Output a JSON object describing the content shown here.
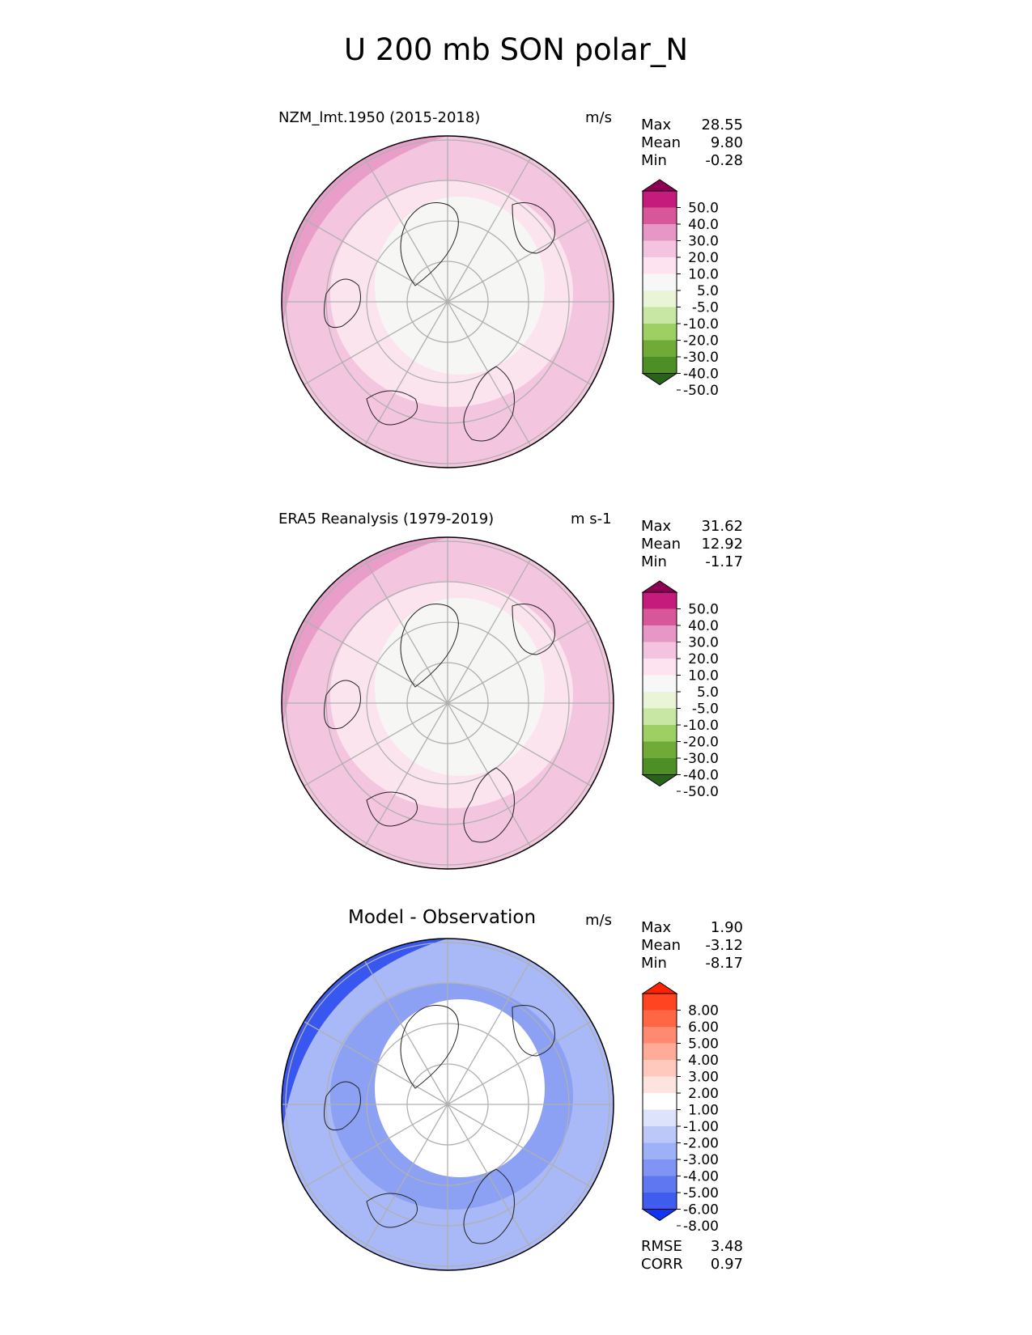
{
  "figure_title": "U 200 mb SON polar_N",
  "panels": [
    {
      "title": "NZM_lmt.1950 (2015-2018)",
      "units": "m/s",
      "stats": [
        {
          "label": "Max",
          "value": "28.55"
        },
        {
          "label": "Mean",
          "value": "9.80"
        },
        {
          "label": "Min",
          "value": "-0.28"
        }
      ],
      "colorbar": {
        "ticks": [
          "50.0",
          "40.0",
          "30.0",
          "20.0",
          "10.0",
          "5.0",
          "-5.0",
          "-10.0",
          "-20.0",
          "-30.0",
          "-40.0",
          "-50.0"
        ],
        "colors": [
          "#8e0152",
          "#c51b7d",
          "#de77ae",
          "#f1b6da",
          "#fde0ef",
          "#f7f7f7",
          "#e6f5d0",
          "#b8e186",
          "#7fbc41",
          "#4d9221",
          "#276419"
        ],
        "colors_full": [
          "#8e0152",
          "#c51b7d",
          "#d6589b",
          "#e797c5",
          "#f3c3df",
          "#fce3ef",
          "#f7f7f7",
          "#e9f5d6",
          "#c9e7a4",
          "#9dcf63",
          "#6fab36",
          "#4d8f25",
          "#276419"
        ]
      },
      "map_colors": {
        "outer": "#f3c5df",
        "ring": "#f3c5df",
        "inner": "#fce4ef",
        "core": "#f6f6f4",
        "jet": "#e898c6"
      }
    },
    {
      "title": "ERA5 Reanalysis (1979-2019)",
      "units": "m s-1",
      "stats": [
        {
          "label": "Max",
          "value": "31.62"
        },
        {
          "label": "Mean",
          "value": "12.92"
        },
        {
          "label": "Min",
          "value": "-1.17"
        }
      ],
      "colorbar": {
        "ticks": [
          "50.0",
          "40.0",
          "30.0",
          "20.0",
          "10.0",
          "5.0",
          "-5.0",
          "-10.0",
          "-20.0",
          "-30.0",
          "-40.0",
          "-50.0"
        ],
        "colors_full": [
          "#8e0152",
          "#c51b7d",
          "#d6589b",
          "#e797c5",
          "#f3c3df",
          "#fce3ef",
          "#f7f7f7",
          "#e9f5d6",
          "#c9e7a4",
          "#9dcf63",
          "#6fab36",
          "#4d8f25",
          "#276419"
        ]
      },
      "map_colors": {
        "outer": "#f3c5df",
        "ring": "#f3c5df",
        "inner": "#fce4ef",
        "core": "#f6f6f4",
        "jet": "#e898c6"
      }
    },
    {
      "title": "Model - Observation",
      "units": "m/s",
      "stats": [
        {
          "label": "Max",
          "value": "1.90"
        },
        {
          "label": "Mean",
          "value": "-3.12"
        },
        {
          "label": "Min",
          "value": "-8.17"
        }
      ],
      "colorbar": {
        "ticks": [
          "8.00",
          "6.00",
          "5.00",
          "4.00",
          "3.00",
          "2.00",
          "1.00",
          "-1.00",
          "-2.00",
          "-3.00",
          "-4.00",
          "-5.00",
          "-6.00",
          "-8.00"
        ],
        "colors_full": [
          "#ff2200",
          "#ff4422",
          "#ff6644",
          "#ff8a70",
          "#ffab99",
          "#ffc9bd",
          "#fde4de",
          "#ffffff",
          "#dde3fb",
          "#bcc8f8",
          "#9fb1f6",
          "#7f94f3",
          "#5f78f1",
          "#3f5cef",
          "#0f35f5"
        ]
      },
      "map_colors": {
        "outer": "#a9b8f6",
        "ring": "#c9d2f9",
        "inner": "#8ca0f4",
        "core": "#ffffff",
        "jet": "#2a4cf0"
      },
      "metrics": [
        {
          "label": "RMSE",
          "value": "3.48"
        },
        {
          "label": "CORR",
          "value": "0.97"
        }
      ]
    }
  ],
  "chart_data": [
    {
      "type": "heatmap",
      "title": "NZM_lmt.1950 (2015-2018)",
      "units": "m/s",
      "projection": "north polar stereographic",
      "max": 28.55,
      "mean": 9.8,
      "min": -0.28,
      "levels": [
        -50,
        -40,
        -30,
        -20,
        -10,
        -5,
        5,
        10,
        20,
        30,
        40,
        50
      ]
    },
    {
      "type": "heatmap",
      "title": "ERA5 Reanalysis (1979-2019)",
      "units": "m s-1",
      "projection": "north polar stereographic",
      "max": 31.62,
      "mean": 12.92,
      "min": -1.17,
      "levels": [
        -50,
        -40,
        -30,
        -20,
        -10,
        -5,
        5,
        10,
        20,
        30,
        40,
        50
      ]
    },
    {
      "type": "heatmap",
      "title": "Model - Observation",
      "units": "m/s",
      "projection": "north polar stereographic",
      "max": 1.9,
      "mean": -3.12,
      "min": -8.17,
      "rmse": 3.48,
      "corr": 0.97,
      "levels": [
        -8,
        -6,
        -5,
        -4,
        -3,
        -2,
        -1,
        1,
        2,
        3,
        4,
        5,
        6,
        8
      ]
    }
  ]
}
